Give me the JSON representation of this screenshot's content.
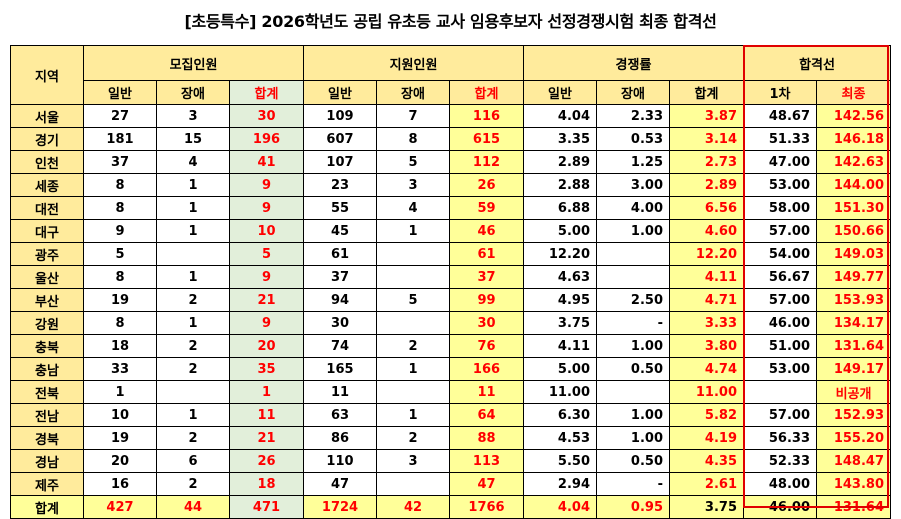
{
  "title": "[초등특수] 2026학년도 공립 유초등 교사 임용후보자 선정경쟁시험 최종 합격선",
  "headers": {
    "region": "지역",
    "recruit": "모집인원",
    "applicants": "지원인원",
    "ratio": "경쟁률",
    "cutoff": "합격선",
    "general": "일반",
    "disabled": "장애",
    "total": "합계",
    "first": "1차",
    "final": "최종"
  },
  "rows": [
    {
      "region": "서울",
      "r_gen": "27",
      "r_dis": "3",
      "r_tot": "30",
      "a_gen": "109",
      "a_dis": "7",
      "a_tot": "116",
      "c_gen": "4.04",
      "c_dis": "2.33",
      "c_tot": "3.87",
      "first": "48.67",
      "final": "142.56"
    },
    {
      "region": "경기",
      "r_gen": "181",
      "r_dis": "15",
      "r_tot": "196",
      "a_gen": "607",
      "a_dis": "8",
      "a_tot": "615",
      "c_gen": "3.35",
      "c_dis": "0.53",
      "c_tot": "3.14",
      "first": "51.33",
      "final": "146.18"
    },
    {
      "region": "인천",
      "r_gen": "37",
      "r_dis": "4",
      "r_tot": "41",
      "a_gen": "107",
      "a_dis": "5",
      "a_tot": "112",
      "c_gen": "2.89",
      "c_dis": "1.25",
      "c_tot": "2.73",
      "first": "47.00",
      "final": "142.63"
    },
    {
      "region": "세종",
      "r_gen": "8",
      "r_dis": "1",
      "r_tot": "9",
      "a_gen": "23",
      "a_dis": "3",
      "a_tot": "26",
      "c_gen": "2.88",
      "c_dis": "3.00",
      "c_tot": "2.89",
      "first": "53.00",
      "final": "144.00"
    },
    {
      "region": "대전",
      "r_gen": "8",
      "r_dis": "1",
      "r_tot": "9",
      "a_gen": "55",
      "a_dis": "4",
      "a_tot": "59",
      "c_gen": "6.88",
      "c_dis": "4.00",
      "c_tot": "6.56",
      "first": "58.00",
      "final": "151.30"
    },
    {
      "region": "대구",
      "r_gen": "9",
      "r_dis": "1",
      "r_tot": "10",
      "a_gen": "45",
      "a_dis": "1",
      "a_tot": "46",
      "c_gen": "5.00",
      "c_dis": "1.00",
      "c_tot": "4.60",
      "first": "57.00",
      "final": "150.66"
    },
    {
      "region": "광주",
      "r_gen": "5",
      "r_dis": "",
      "r_tot": "5",
      "a_gen": "61",
      "a_dis": "",
      "a_tot": "61",
      "c_gen": "12.20",
      "c_dis": "",
      "c_tot": "12.20",
      "first": "54.00",
      "final": "149.03"
    },
    {
      "region": "울산",
      "r_gen": "8",
      "r_dis": "1",
      "r_tot": "9",
      "a_gen": "37",
      "a_dis": "",
      "a_tot": "37",
      "c_gen": "4.63",
      "c_dis": "",
      "c_tot": "4.11",
      "first": "56.67",
      "final": "149.77"
    },
    {
      "region": "부산",
      "r_gen": "19",
      "r_dis": "2",
      "r_tot": "21",
      "a_gen": "94",
      "a_dis": "5",
      "a_tot": "99",
      "c_gen": "4.95",
      "c_dis": "2.50",
      "c_tot": "4.71",
      "first": "57.00",
      "final": "153.93"
    },
    {
      "region": "강원",
      "r_gen": "8",
      "r_dis": "1",
      "r_tot": "9",
      "a_gen": "30",
      "a_dis": "",
      "a_tot": "30",
      "c_gen": "3.75",
      "c_dis": "-",
      "c_tot": "3.33",
      "first": "46.00",
      "final": "134.17"
    },
    {
      "region": "충북",
      "r_gen": "18",
      "r_dis": "2",
      "r_tot": "20",
      "a_gen": "74",
      "a_dis": "2",
      "a_tot": "76",
      "c_gen": "4.11",
      "c_dis": "1.00",
      "c_tot": "3.80",
      "first": "51.00",
      "final": "131.64"
    },
    {
      "region": "충남",
      "r_gen": "33",
      "r_dis": "2",
      "r_tot": "35",
      "a_gen": "165",
      "a_dis": "1",
      "a_tot": "166",
      "c_gen": "5.00",
      "c_dis": "0.50",
      "c_tot": "4.74",
      "first": "53.00",
      "final": "149.17"
    },
    {
      "region": "전북",
      "r_gen": "1",
      "r_dis": "",
      "r_tot": "1",
      "a_gen": "11",
      "a_dis": "",
      "a_tot": "11",
      "c_gen": "11.00",
      "c_dis": "",
      "c_tot": "11.00",
      "first": "",
      "final": "비공개"
    },
    {
      "region": "전남",
      "r_gen": "10",
      "r_dis": "1",
      "r_tot": "11",
      "a_gen": "63",
      "a_dis": "1",
      "a_tot": "64",
      "c_gen": "6.30",
      "c_dis": "1.00",
      "c_tot": "5.82",
      "first": "57.00",
      "final": "152.93"
    },
    {
      "region": "경북",
      "r_gen": "19",
      "r_dis": "2",
      "r_tot": "21",
      "a_gen": "86",
      "a_dis": "2",
      "a_tot": "88",
      "c_gen": "4.53",
      "c_dis": "1.00",
      "c_tot": "4.19",
      "first": "56.33",
      "final": "155.20"
    },
    {
      "region": "경남",
      "r_gen": "20",
      "r_dis": "6",
      "r_tot": "26",
      "a_gen": "110",
      "a_dis": "3",
      "a_tot": "113",
      "c_gen": "5.50",
      "c_dis": "0.50",
      "c_tot": "4.35",
      "first": "52.33",
      "final": "148.47"
    },
    {
      "region": "제주",
      "r_gen": "16",
      "r_dis": "2",
      "r_tot": "18",
      "a_gen": "47",
      "a_dis": "",
      "a_tot": "47",
      "c_gen": "2.94",
      "c_dis": "-",
      "c_tot": "2.61",
      "first": "48.00",
      "final": "143.80"
    }
  ],
  "total_row": {
    "region": "합계",
    "r_gen": "427",
    "r_dis": "44",
    "r_tot": "471",
    "a_gen": "1724",
    "a_dis": "42",
    "a_tot": "1766",
    "c_gen": "4.04",
    "c_dis": "0.95",
    "c_tot": "3.75",
    "first": "46.00",
    "final": "131.64"
  },
  "colors": {
    "header_bg": "#FFEB9C",
    "highlight_yellow": "#FFFF99",
    "highlight_green": "#E2EFDA",
    "accent_red": "#FF0000",
    "frame_red": "#E00000"
  }
}
